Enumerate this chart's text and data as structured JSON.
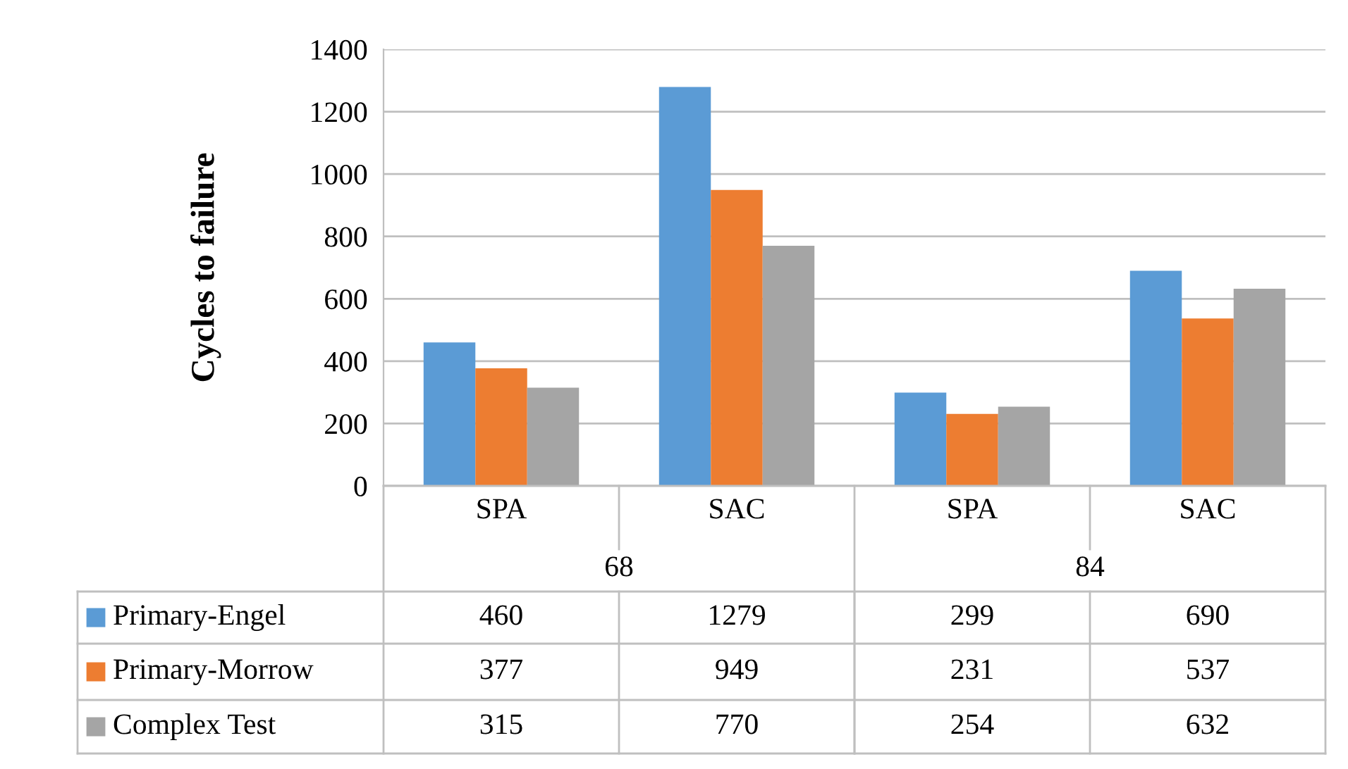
{
  "chart_data": {
    "type": "bar",
    "ylabel": "Cycles to failure",
    "categories": [
      "SPA",
      "SAC",
      "SPA",
      "SAC"
    ],
    "annotations": [
      "68",
      "84"
    ],
    "series": [
      {
        "name": "Primary-Engel",
        "color": "#5b9bd5",
        "values": [
          460,
          1279,
          299,
          690
        ]
      },
      {
        "name": "Primary-Morrow",
        "color": "#ed7d31",
        "values": [
          377,
          949,
          231,
          537
        ]
      },
      {
        "name": "Complex Test",
        "color": "#a5a5a5",
        "values": [
          315,
          770,
          254,
          632
        ]
      }
    ],
    "ylim": [
      0,
      1400
    ],
    "yticks": [
      0,
      200,
      400,
      600,
      800,
      1000,
      1200,
      1400
    ],
    "grid": "y",
    "legend": "bottom",
    "data_labels": true
  }
}
